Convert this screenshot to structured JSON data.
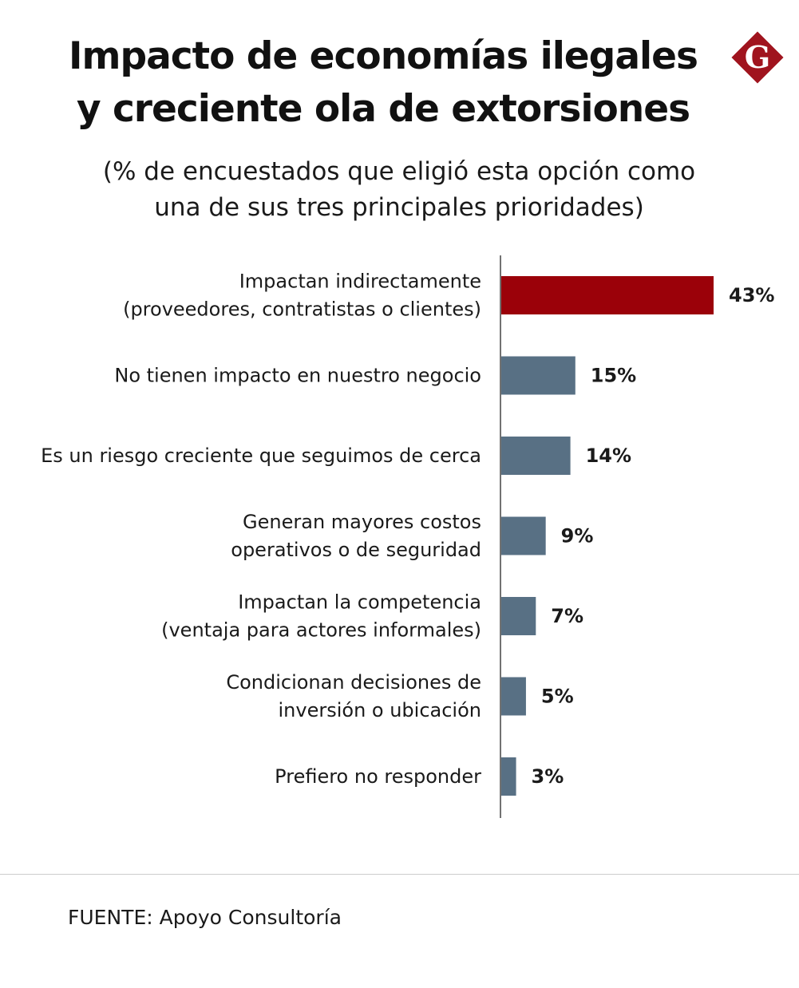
{
  "header": {
    "title_line1": "Impacto de economías ilegales",
    "title_line2": "y creciente ola de extorsiones",
    "subtitle_line1": "(% de encuestados que eligió esta opción como",
    "subtitle_line2": "una de sus tres principales prioridades)",
    "logo_letter": "G"
  },
  "colors": {
    "highlight": "#9b0109",
    "bar": "#587084",
    "logo": "#a0141e"
  },
  "chart_data": {
    "type": "bar",
    "orientation": "horizontal",
    "categories": [
      [
        "Impactan indirectamente",
        "(proveedores, contratistas o clientes)"
      ],
      [
        "No tienen impacto en nuestro negocio"
      ],
      [
        "Es un riesgo creciente que seguimos de cerca"
      ],
      [
        "Generan mayores costos",
        "operativos o de seguridad"
      ],
      [
        "Impactan la competencia",
        "(ventaja para actores informales)"
      ],
      [
        "Condicionan decisiones de",
        "inversión o ubicación"
      ],
      [
        "Prefiero no responder"
      ]
    ],
    "values": [
      43,
      15,
      14,
      9,
      7,
      5,
      3
    ],
    "value_labels": [
      "43%",
      "15%",
      "14%",
      "9%",
      "7%",
      "5%",
      "3%"
    ],
    "highlight_index": 0,
    "xlim": [
      0,
      43
    ],
    "grid": false,
    "legend": "none"
  },
  "footer": {
    "source": "FUENTE: Apoyo Consultoría"
  }
}
